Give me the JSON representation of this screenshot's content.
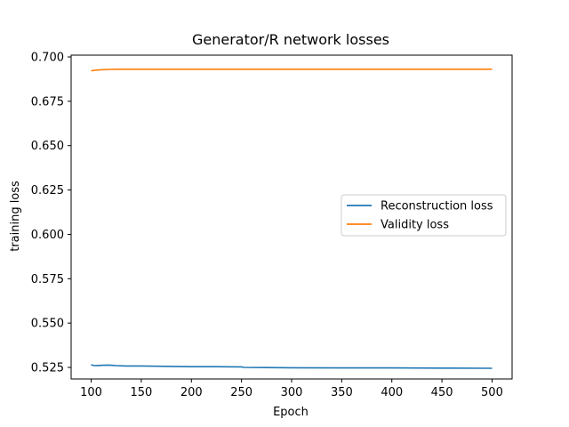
{
  "chart_data": {
    "type": "line",
    "title": "Generator/R network losses",
    "xlabel": "Epoch",
    "ylabel": "training loss",
    "xlim": [
      80,
      520
    ],
    "ylim": [
      0.5185,
      0.701
    ],
    "xticks": [
      100,
      150,
      200,
      250,
      300,
      350,
      400,
      450,
      500
    ],
    "xtick_labels": [
      "100",
      "150",
      "200",
      "250",
      "300",
      "350",
      "400",
      "450",
      "500"
    ],
    "yticks": [
      0.525,
      0.55,
      0.575,
      0.6,
      0.625,
      0.65,
      0.675,
      0.7
    ],
    "ytick_labels": [
      "0.525",
      "0.550",
      "0.575",
      "0.600",
      "0.625",
      "0.650",
      "0.675",
      "0.700"
    ],
    "grid": false,
    "legend_position": "center-right",
    "series": [
      {
        "name": "Reconstruction loss",
        "color": "#1f77b4",
        "x": [
          100,
          103,
          108,
          112,
          118,
          125,
          135,
          150,
          175,
          200,
          225,
          250,
          252,
          275,
          300,
          350,
          400,
          450,
          500
        ],
        "y": [
          0.5265,
          0.526,
          0.5261,
          0.5262,
          0.5263,
          0.526,
          0.5258,
          0.5258,
          0.5256,
          0.5254,
          0.5254,
          0.5253,
          0.525,
          0.5249,
          0.5248,
          0.5247,
          0.5247,
          0.5246,
          0.5245
        ]
      },
      {
        "name": "Validity loss",
        "color": "#ff7f0e",
        "x": [
          100,
          105,
          110,
          115,
          120,
          130,
          150,
          200,
          250,
          300,
          350,
          400,
          450,
          500
        ],
        "y": [
          0.6922,
          0.6926,
          0.6928,
          0.6929,
          0.693,
          0.6931,
          0.6931,
          0.6931,
          0.6931,
          0.6931,
          0.6931,
          0.6931,
          0.6931,
          0.6931
        ]
      }
    ]
  }
}
